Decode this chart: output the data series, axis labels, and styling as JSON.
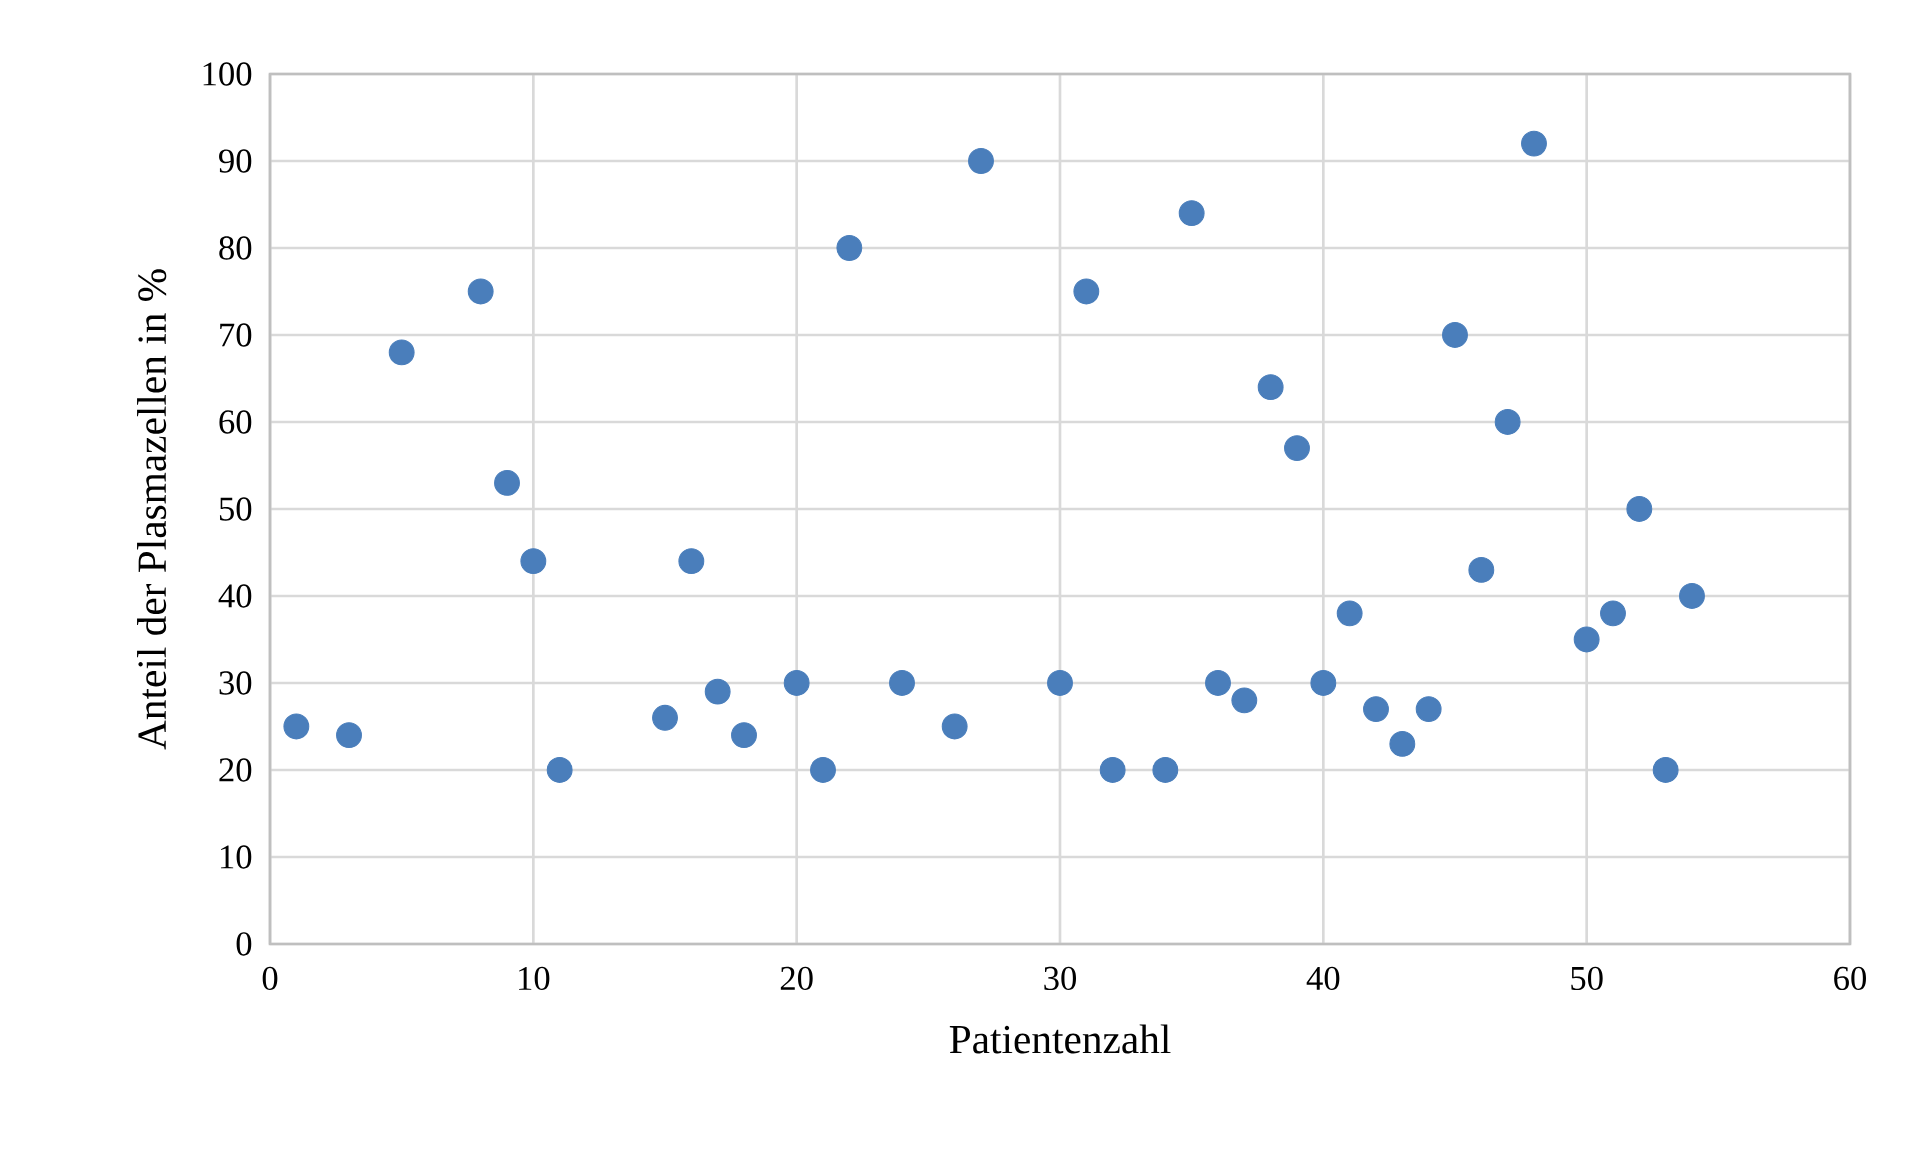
{
  "chart_data": {
    "type": "scatter",
    "xlabel": "Patientenzahl",
    "ylabel": "Anteil der Plasmazellen in %",
    "x": [
      1,
      3,
      5,
      8,
      9,
      10,
      11,
      15,
      16,
      17,
      18,
      20,
      21,
      22,
      24,
      26,
      27,
      30,
      31,
      32,
      34,
      35,
      36,
      37,
      38,
      39,
      40,
      41,
      42,
      43,
      44,
      45,
      46,
      47,
      48,
      50,
      51,
      52,
      53,
      54
    ],
    "values": [
      25,
      24,
      68,
      75,
      53,
      44,
      20,
      26,
      44,
      29,
      24,
      30,
      20,
      80,
      30,
      25,
      90,
      30,
      75,
      20,
      20,
      84,
      30,
      28,
      64,
      57,
      30,
      38,
      27,
      23,
      27,
      70,
      43,
      60,
      92,
      35,
      38,
      50,
      20,
      40
    ],
    "color": "#4a7ebb",
    "marker": "circle",
    "grid": true,
    "xlim": [
      0,
      60
    ],
    "xticks": [
      0,
      10,
      20,
      30,
      40,
      50,
      60
    ],
    "ylim": [
      0,
      100
    ],
    "yticks": [
      0,
      10,
      20,
      30,
      40,
      50,
      60,
      70,
      80,
      90,
      100
    ]
  }
}
